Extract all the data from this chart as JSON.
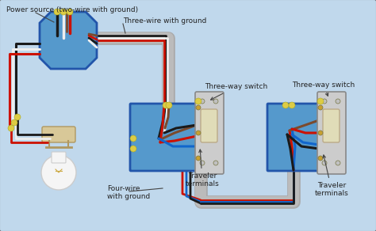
{
  "bg_color": "#c0d8ec",
  "border_color": "#666666",
  "labels": {
    "power_source": "Power source (two-wire with ground)",
    "three_wire": "Three-wire with ground",
    "four_wire": "Four-wire\nwith ground",
    "switch1_label": "Three-way switch",
    "switch2_label": "Three-way switch",
    "traveler1": "Traveler\nterminals",
    "traveler2": "Traveler\nterminals"
  },
  "wire_colors": {
    "black": "#1a1a1a",
    "white": "#eeeeee",
    "red": "#cc1100",
    "blue": "#1166cc",
    "brown": "#7b4a2d",
    "gray": "#999999",
    "gray_conduit": "#aaaaaa",
    "bare": "#c8a030"
  },
  "box_color": "#5599cc",
  "box_edge": "#2255aa",
  "switch_body": "#cccccc",
  "switch_edge": "#999999",
  "switch_toggle": "#e0dcb8",
  "connector_color": "#ddcc44",
  "bulb_color": "#f5f5f5",
  "socket_color": "#d8c898"
}
